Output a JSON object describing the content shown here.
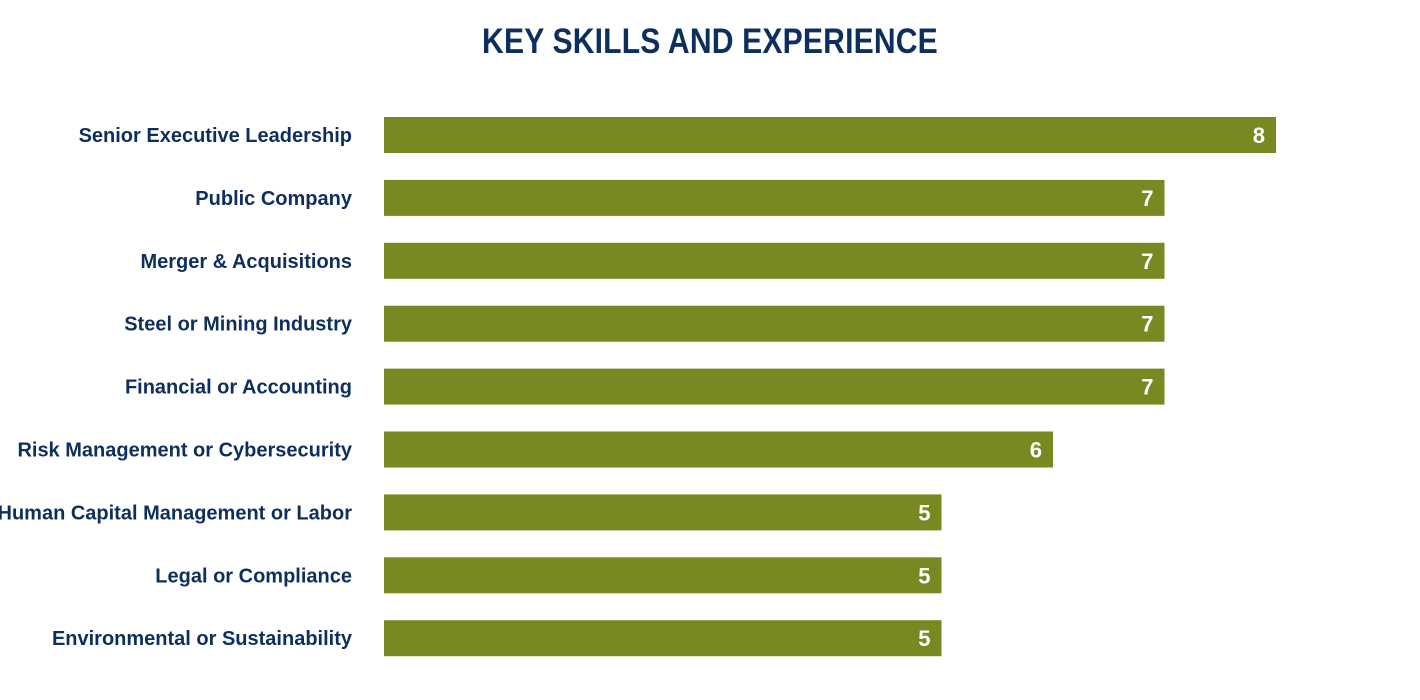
{
  "colors": {
    "title": "#0d2f5e",
    "category_label": "#0d2f5e",
    "bar": "#778a22",
    "value_label": "#ffffff"
  },
  "chart_data": {
    "type": "bar",
    "orientation": "horizontal",
    "title": "KEY SKILLS AND EXPERIENCE",
    "categories": [
      "Senior Executive Leadership",
      "Public Company",
      "Merger & Acquisitions",
      "Steel or Mining Industry",
      "Financial or Accounting",
      "Risk Management or Cybersecurity",
      "Human Capital Management or Labor",
      "Legal or Compliance",
      "Environmental or Sustainability"
    ],
    "values": [
      8,
      7,
      7,
      7,
      7,
      6,
      5,
      5,
      5
    ],
    "xlim": [
      0,
      8
    ],
    "grid": false,
    "legend": "none",
    "data_labels": true
  }
}
